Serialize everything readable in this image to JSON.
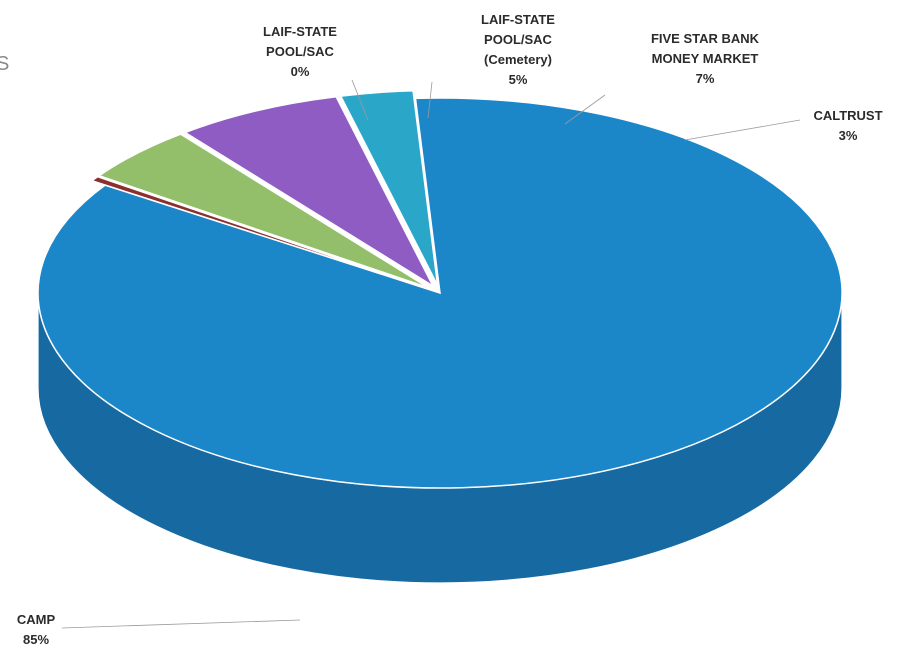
{
  "chart_data": {
    "type": "pie",
    "style": "3d-exploded",
    "edge_text": "S",
    "slices": [
      {
        "name": "CAMP",
        "label_lines": [
          "CAMP"
        ],
        "pct_label": "85%",
        "value": 85.3,
        "color": "#1b87c9",
        "side_color": "#1769a2"
      },
      {
        "name": "LAIF-STATE POOL/SAC",
        "label_lines": [
          "LAIF-STATE",
          "POOL/SAC"
        ],
        "pct_label": "0%",
        "value": 0.4,
        "color": "#8b2f2f",
        "side_color": "#5e1f1f"
      },
      {
        "name": "LAIF-STATE POOL/SAC (Cemetery)",
        "label_lines": [
          "LAIF-STATE",
          "POOL/SAC",
          "(Cemetery)"
        ],
        "pct_label": "5%",
        "value": 4.7,
        "color": "#93bf6a",
        "side_color": "#6f9a49"
      },
      {
        "name": "FIVE STAR BANK MONEY MARKET",
        "label_lines": [
          "FIVE STAR BANK",
          "MONEY MARKET"
        ],
        "pct_label": "7%",
        "value": 6.7,
        "color": "#8e5cc2",
        "side_color": "#6b3f98"
      },
      {
        "name": "CALTRUST",
        "label_lines": [
          "CALTRUST"
        ],
        "pct_label": "3%",
        "value": 2.9,
        "color": "#2aa7c8",
        "side_color": "#1d7f99"
      }
    ]
  }
}
